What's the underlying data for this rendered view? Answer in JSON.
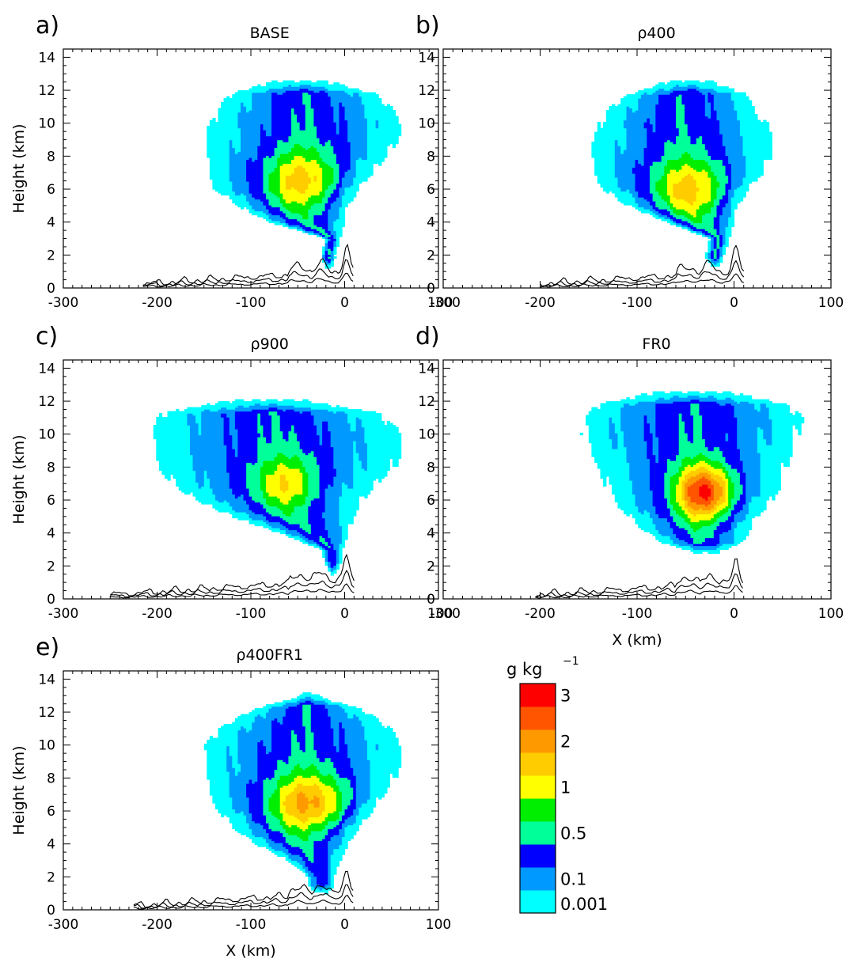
{
  "colors": {
    "levels": [
      "#00ffff",
      "#0099ff",
      "#0000ff",
      "#00ff99",
      "#00ee00",
      "#ffff00",
      "#ffcc00",
      "#ff9900",
      "#ff5500",
      "#ff0000"
    ],
    "terrain_line": "#000000"
  },
  "chart_data": [
    {
      "type": "contour",
      "panel": "a)",
      "title": "BASE",
      "ylabel": "Height (km)",
      "xlabel": "",
      "xlim": [
        -300,
        100
      ],
      "ylim": [
        0,
        14.5
      ],
      "xticks": [
        "-300",
        "-200",
        "-100",
        "0",
        "100"
      ],
      "yticks": [
        "0",
        "2",
        "4",
        "6",
        "8",
        "10",
        "12",
        "14"
      ],
      "cloud_extent_km": {
        "x_min": -150,
        "x_max": 60,
        "z_min": 0.5,
        "z_max": 12.6
      },
      "peak_level": "2",
      "terrain_start_km": -215
    },
    {
      "type": "contour",
      "panel": "b)",
      "title": "ρ400",
      "ylabel": "",
      "xlabel": "",
      "xlim": [
        -300,
        100
      ],
      "ylim": [
        0,
        14.5
      ],
      "xticks": [
        "-300",
        "-200",
        "-100",
        "0",
        "100"
      ],
      "yticks": [
        "0",
        "2",
        "4",
        "6",
        "8",
        "10",
        "12",
        "14"
      ],
      "cloud_extent_km": {
        "x_min": -150,
        "x_max": 40,
        "z_min": 0.5,
        "z_max": 12.6
      },
      "peak_level": "2",
      "terrain_start_km": -200
    },
    {
      "type": "contour",
      "panel": "c)",
      "title": "ρ900",
      "ylabel": "Height (km)",
      "xlabel": "",
      "xlim": [
        -300,
        100
      ],
      "ylim": [
        0,
        14.5
      ],
      "xticks": [
        "-300",
        "-200",
        "-100",
        "0",
        "100"
      ],
      "yticks": [
        "0",
        "2",
        "4",
        "6",
        "8",
        "10",
        "12",
        "14"
      ],
      "cloud_extent_km": {
        "x_min": -205,
        "x_max": 65,
        "z_min": 0.5,
        "z_max": 12.1
      },
      "peak_level": "1",
      "terrain_start_km": -250
    },
    {
      "type": "contour",
      "panel": "d)",
      "title": "FR0",
      "ylabel": "",
      "xlabel": "X (km)",
      "xlim": [
        -300,
        100
      ],
      "ylim": [
        0,
        14.5
      ],
      "xticks": [
        "-300",
        "-200",
        "-100",
        "0",
        "100"
      ],
      "yticks": [
        "0",
        "2",
        "4",
        "6",
        "8",
        "10",
        "12",
        "14"
      ],
      "cloud_extent_km": {
        "x_min": -160,
        "x_max": 75,
        "z_min": 2.8,
        "z_max": 12.6
      },
      "peak_level": "3",
      "terrain_start_km": -205
    },
    {
      "type": "contour",
      "panel": "e)",
      "title": "ρ400FR1",
      "ylabel": "Height (km)",
      "xlabel": "X (km)",
      "xlim": [
        -300,
        100
      ],
      "ylim": [
        0,
        14.5
      ],
      "xticks": [
        "-300",
        "-200",
        "-100",
        "0",
        "100"
      ],
      "yticks": [
        "0",
        "2",
        "4",
        "6",
        "8",
        "10",
        "12",
        "14"
      ],
      "cloud_extent_km": {
        "x_min": -155,
        "x_max": 60,
        "z_min": 0.5,
        "z_max": 13.2
      },
      "peak_level": "2",
      "terrain_start_km": -225
    }
  ],
  "colorbar": {
    "unit_base": "g kg",
    "unit_exp": "−1",
    "tick_labels": [
      "3",
      "2",
      "1",
      "0.5",
      "0.1",
      "0.001"
    ]
  }
}
